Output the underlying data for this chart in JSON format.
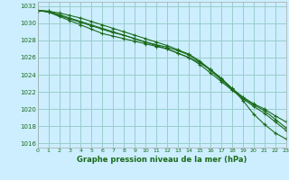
{
  "title": "Graphe pression niveau de la mer (hPa)",
  "bg_color": "#cceeff",
  "grid_color": "#99cccc",
  "line_color": "#1a6b1a",
  "xlim": [
    0,
    23
  ],
  "ylim": [
    1015.5,
    1032.5
  ],
  "yticks": [
    1016,
    1018,
    1020,
    1022,
    1024,
    1026,
    1028,
    1030,
    1032
  ],
  "xticks": [
    0,
    1,
    2,
    3,
    4,
    5,
    6,
    7,
    8,
    9,
    10,
    11,
    12,
    13,
    14,
    15,
    16,
    17,
    18,
    19,
    20,
    21,
    22,
    23
  ],
  "series": [
    [
      1031.5,
      1031.4,
      1031.0,
      1030.6,
      1030.2,
      1029.8,
      1029.4,
      1029.0,
      1028.6,
      1028.2,
      1027.8,
      1027.4,
      1027.0,
      1026.5,
      1026.0,
      1025.4,
      1024.6,
      1023.6,
      1022.4,
      1021.0,
      1019.4,
      1018.2,
      1017.2,
      1016.5
    ],
    [
      1031.5,
      1031.3,
      1030.8,
      1030.3,
      1029.8,
      1029.3,
      1028.8,
      1028.5,
      1028.2,
      1027.9,
      1027.6,
      1027.3,
      1027.0,
      1026.5,
      1026.0,
      1025.2,
      1024.2,
      1023.2,
      1022.2,
      1021.2,
      1020.3,
      1019.5,
      1018.5,
      1017.5
    ],
    [
      1031.5,
      1031.3,
      1030.9,
      1030.5,
      1030.1,
      1029.7,
      1029.3,
      1028.9,
      1028.6,
      1028.2,
      1027.8,
      1027.5,
      1027.2,
      1026.8,
      1026.3,
      1025.5,
      1024.5,
      1023.4,
      1022.3,
      1021.3,
      1020.5,
      1019.8,
      1018.8,
      1017.8
    ],
    [
      1031.5,
      1031.4,
      1031.2,
      1030.9,
      1030.6,
      1030.2,
      1029.8,
      1029.4,
      1029.0,
      1028.6,
      1028.2,
      1027.8,
      1027.4,
      1026.9,
      1026.4,
      1025.6,
      1024.6,
      1023.5,
      1022.4,
      1021.4,
      1020.6,
      1020.0,
      1019.2,
      1018.5
    ]
  ]
}
